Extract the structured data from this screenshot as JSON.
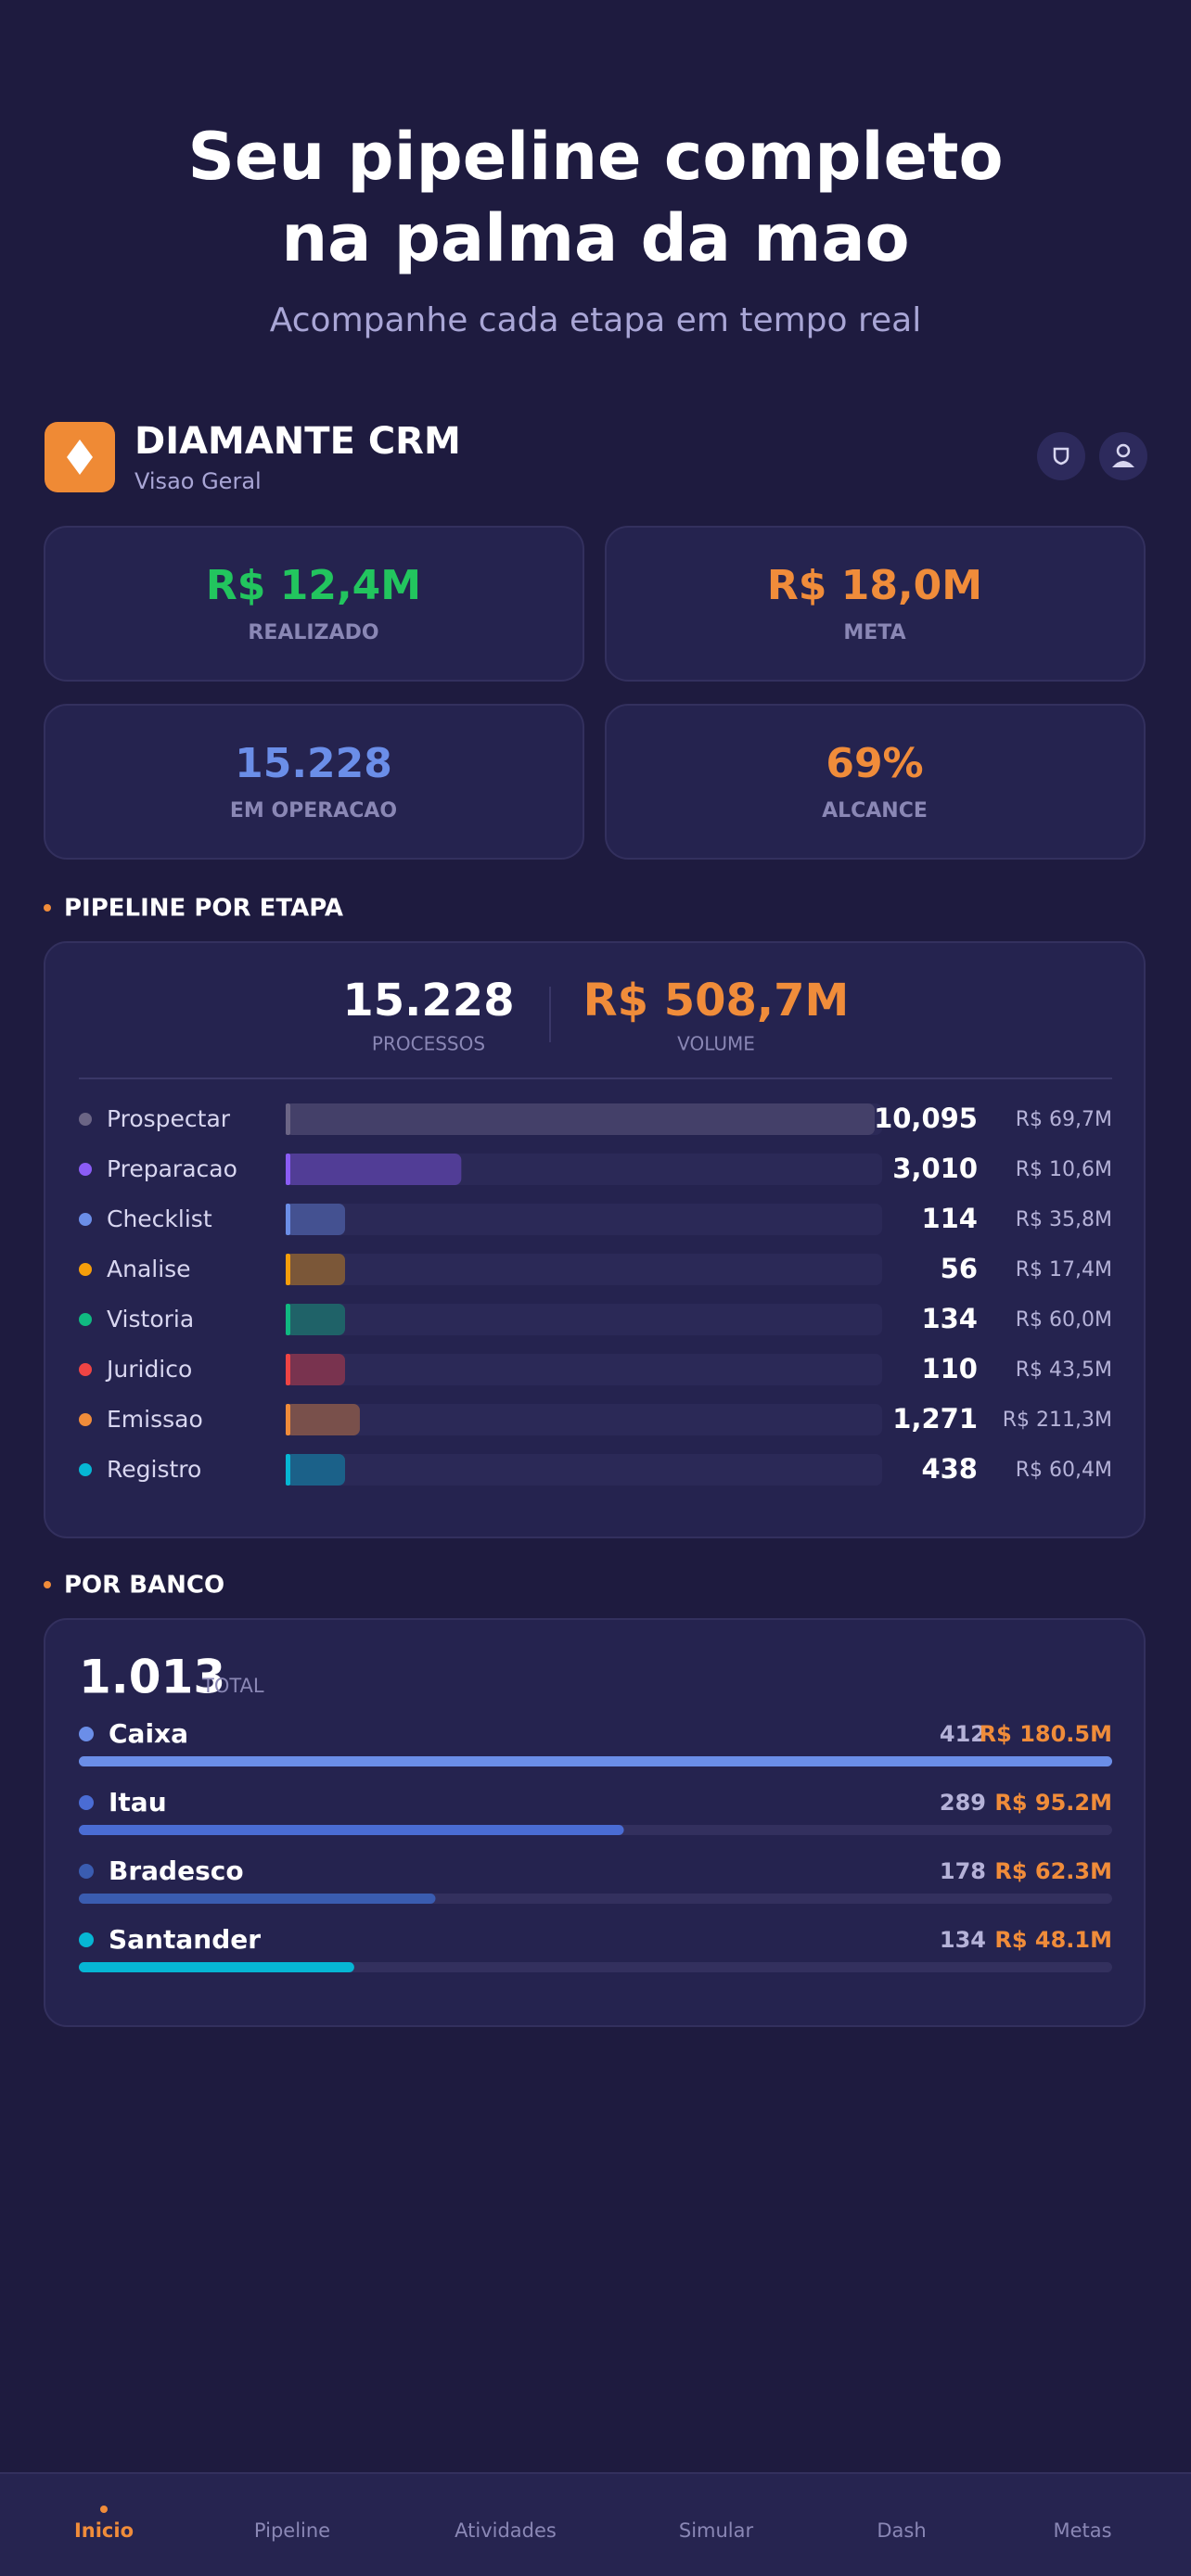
{
  "hero": {
    "title_line1": "Seu pipeline completo",
    "title_line2": "na palma da mao",
    "subtitle": "Acompanhe cada etapa em tempo real"
  },
  "header": {
    "title": "DIAMANTE CRM",
    "subtitle": "Visao Geral"
  },
  "stats": [
    {
      "value": "R$ 12,4M",
      "label": "REALIZADO",
      "color": "#22c55e"
    },
    {
      "value": "R$ 18,0M",
      "label": "META",
      "color": "#f08c3a"
    },
    {
      "value": "15.228",
      "label": "EM OPERACAO",
      "color": "#6b8ee8"
    },
    {
      "value": "69%",
      "label": "ALCANCE",
      "color": "#f08c3a"
    }
  ],
  "pipeline": {
    "title": "PIPELINE POR ETAPA",
    "processes": "15.228",
    "processes_label": "PROCESSOS",
    "volume": "R$ 508,7M",
    "volume_label": "VOLUME",
    "stages": [
      {
        "name": "Prospectar",
        "count": 10095,
        "count_label": "10,095",
        "volume": "R$ 69,7M",
        "color": "#6b6585"
      },
      {
        "name": "Preparacao",
        "count": 3010,
        "count_label": "3,010",
        "volume": "R$ 10,6M",
        "color": "#8b5cf6"
      },
      {
        "name": "Checklist",
        "count": 114,
        "volume": "R$ 35,8M",
        "color": "#6b8ee8"
      },
      {
        "name": "Analise",
        "count": 56,
        "volume": "R$ 17,4M",
        "color": "#f59e0b"
      },
      {
        "name": "Vistoria",
        "count": 134,
        "volume": "R$ 60,0M",
        "color": "#10b981"
      },
      {
        "name": "Juridico",
        "count": 110,
        "volume": "R$ 43,5M",
        "color": "#ef4444"
      },
      {
        "name": "Emissao",
        "count": 1271,
        "count_label": "1,271",
        "volume": "R$ 211,3M",
        "color": "#f08c3a"
      },
      {
        "name": "Registro",
        "count": 438,
        "volume": "R$ 60,4M",
        "color": "#06b6d4"
      }
    ]
  },
  "banks": {
    "title": "POR BANCO",
    "total": "1.013",
    "total_label": "TOTAL",
    "items": [
      {
        "name": "Caixa",
        "count": 412,
        "volume": 180.5,
        "volume_label": "R$ 180.5M",
        "color": "#6b8ee8"
      },
      {
        "name": "Itau",
        "count": 289,
        "volume": 95.2,
        "volume_label": "R$ 95.2M",
        "color": "#4a6cd4"
      },
      {
        "name": "Bradesco",
        "count": 178,
        "volume": 62.3,
        "volume_label": "R$ 62.3M",
        "color": "#3a5cb0"
      },
      {
        "name": "Santander",
        "count": 134,
        "volume": 48.1,
        "volume_label": "R$ 48.1M",
        "color": "#06b6d4"
      }
    ]
  },
  "nav": [
    "Inicio",
    "Pipeline",
    "Atividades",
    "Simular",
    "Dash",
    "Metas"
  ]
}
